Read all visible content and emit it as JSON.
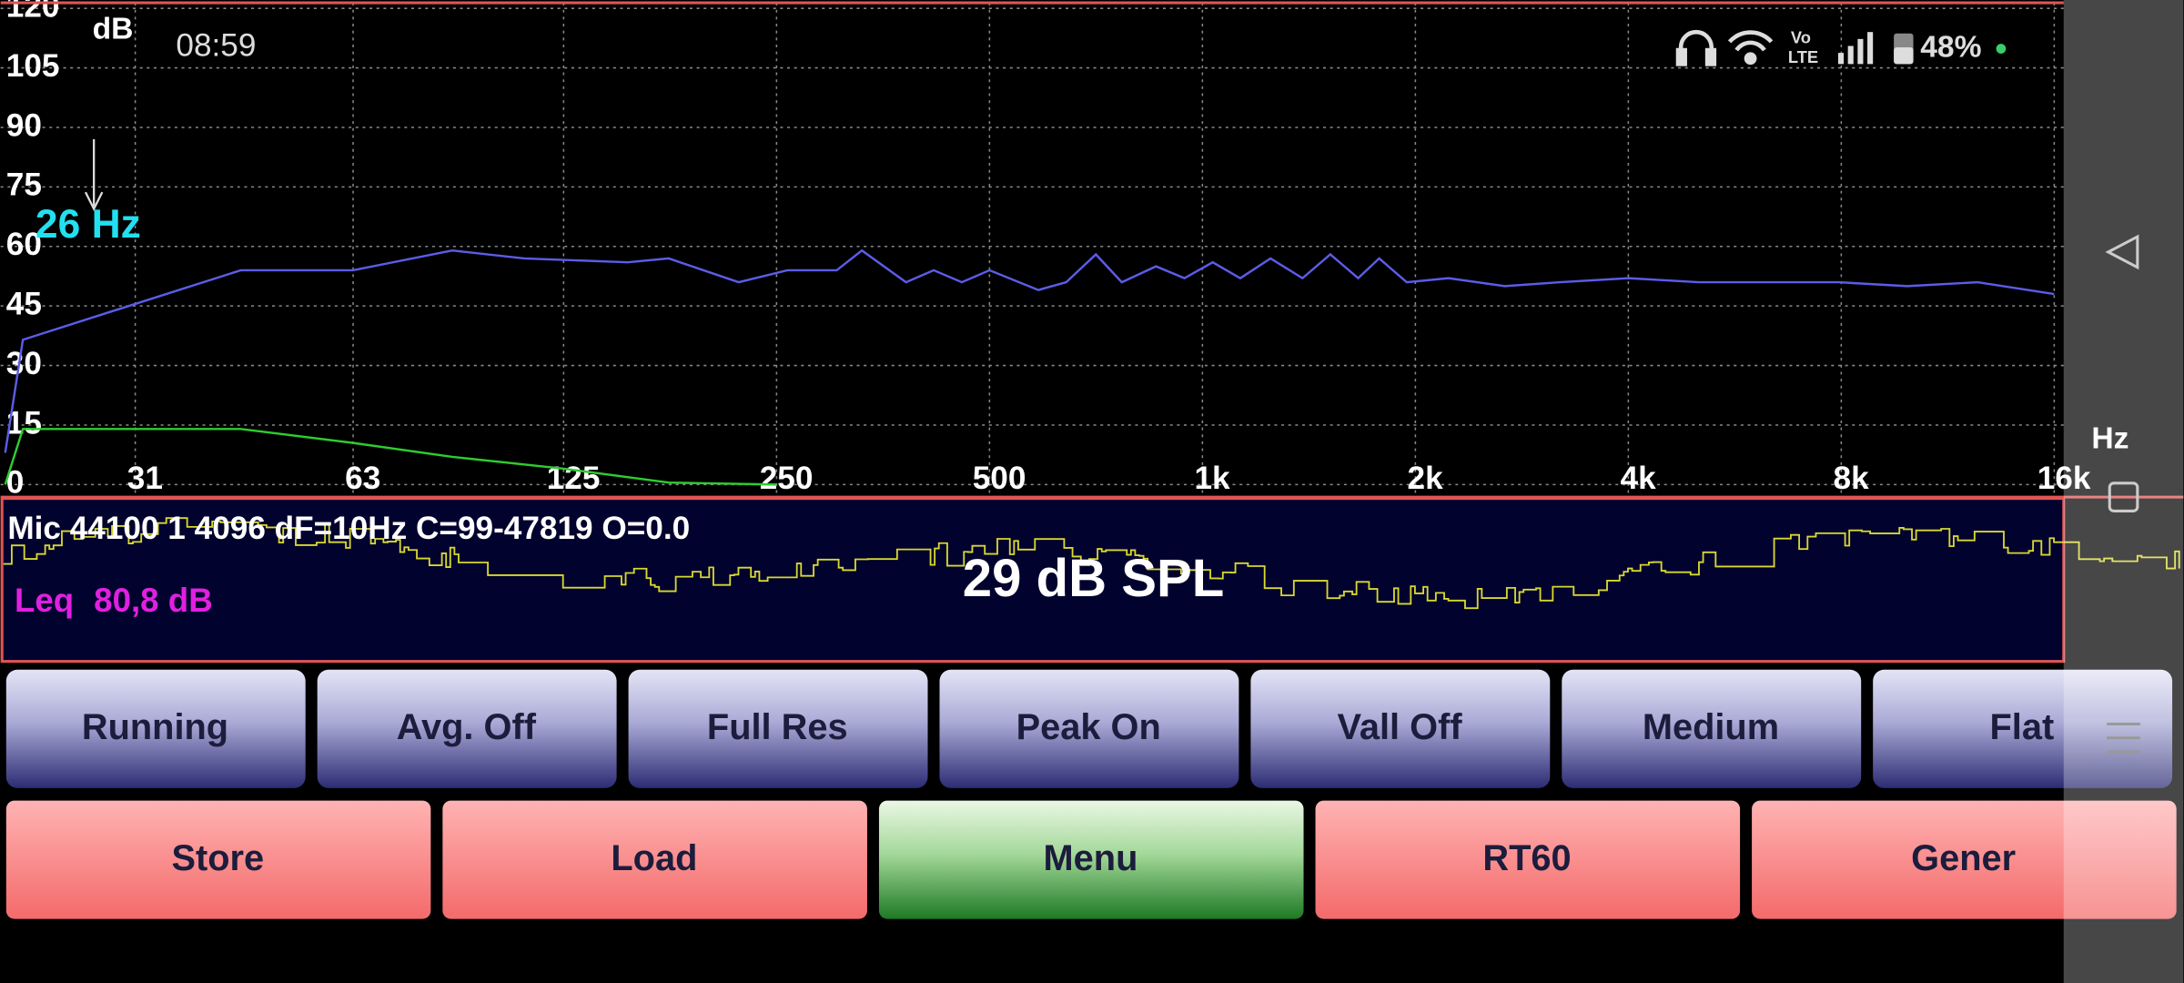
{
  "status_bar": {
    "time": "08:59",
    "volte_top": "Vo",
    "volte_bottom": "LTE",
    "battery": "48%"
  },
  "chart_data": {
    "type": "line",
    "y_unit": "dB",
    "x_unit": "Hz",
    "marker_label": "26 Hz",
    "xscale": "log",
    "xlim": [
      20,
      16500
    ],
    "ylim": [
      0,
      120
    ],
    "xticks": [
      31,
      63,
      125,
      250,
      500,
      {
        "value": 1000,
        "label": "1k"
      },
      {
        "value": 2000,
        "label": "2k"
      },
      {
        "value": 4000,
        "label": "4k"
      },
      {
        "value": 8000,
        "label": "8k"
      },
      {
        "value": 16000,
        "label": "16k"
      }
    ],
    "yticks": [
      0,
      15,
      30,
      45,
      60,
      75,
      90,
      105,
      120
    ],
    "grid": true,
    "series": [
      {
        "color": "#5c5ce8",
        "x": [
          20.3,
          21.5,
          43.7,
          63,
          87,
          110,
          154,
          176,
          221,
          259,
          304,
          330,
          381,
          417,
          457,
          500,
          586,
          642,
          707,
          769,
          860,
          943,
          1034,
          1131,
          1248,
          1385,
          1516,
          1660,
          1778,
          1945,
          2228,
          2675,
          3203,
          4000,
          5028,
          6316,
          7938,
          9917,
          12470,
          16000
        ],
        "values": [
          8,
          36.5,
          54,
          54,
          59,
          57,
          56,
          57,
          51,
          54,
          54,
          59,
          51,
          54,
          51,
          54,
          49,
          51,
          58,
          51,
          55,
          52,
          56,
          52,
          57,
          52,
          58,
          52,
          57,
          51,
          52,
          50,
          51,
          52,
          51,
          51,
          51,
          50,
          51,
          48
        ]
      },
      {
        "color": "#2ecc2e",
        "x": [
          20.3,
          21.5,
          43.7,
          63,
          87,
          125,
          176,
          250
        ],
        "values": [
          0,
          14,
          14,
          10.5,
          7,
          4,
          0.5,
          0
        ]
      }
    ]
  },
  "info": {
    "line": "Mic 44100 1 4096 dF=10Hz C=99-47819 O=0.0",
    "leq_label": "Leq",
    "leq_value": "80,8 dB",
    "spl": "29 dB SPL"
  },
  "buttons_top": [
    "Running",
    "Avg. Off",
    "Full Res",
    "Peak On",
    "Vall Off",
    "Medium",
    "Flat"
  ],
  "buttons_bottom": [
    "Store",
    "Load",
    "Menu",
    "RT60",
    "Gener"
  ]
}
